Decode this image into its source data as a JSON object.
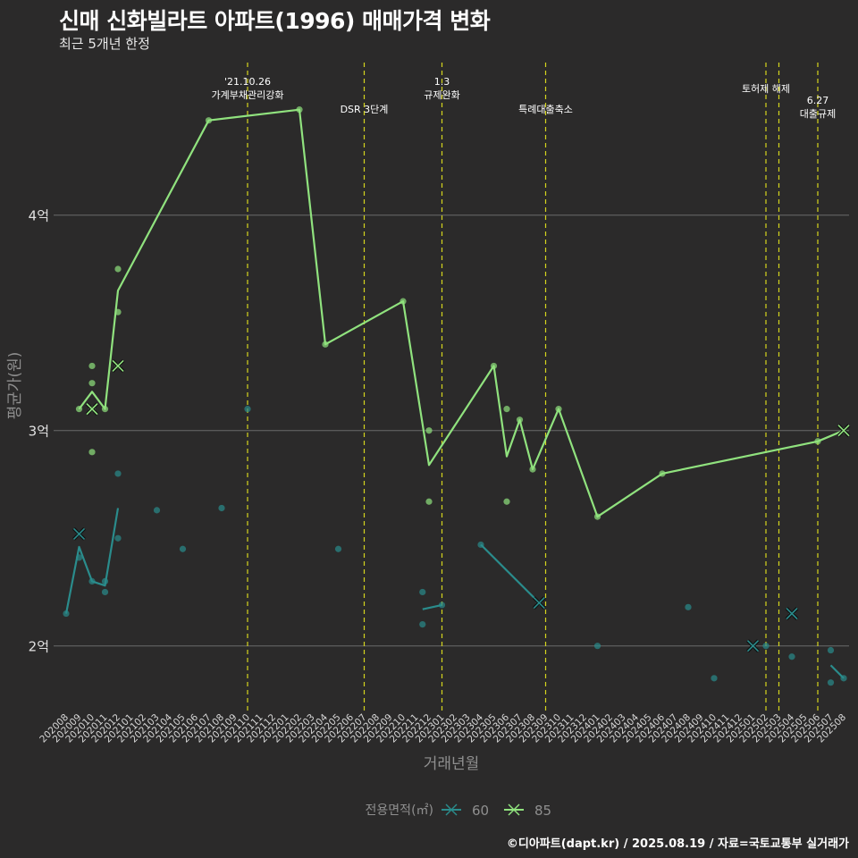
{
  "header": {
    "title": "신매 신화빌라트 아파트(1996) 매매가격 변화",
    "subtitle": "최근 5개년 한정"
  },
  "footer": {
    "caption": "©디아파트(dapt.kr) / 2025.08.19 / 자료=국토교통부 실거래가"
  },
  "colors": {
    "background": "#2b2a2a",
    "grid": "#6b6b6b",
    "series_60": "#2a8c8c",
    "series_85": "#90e27e",
    "event_line": "#d5d51e",
    "text": "#ffffff",
    "axis_title": "#8f8f8f"
  },
  "chart_data": {
    "type": "line",
    "xlabel": "거래년월",
    "ylabel": "평균가(원)",
    "ylim": [
      1.7,
      4.75
    ],
    "x": [
      "202008",
      "202009",
      "202010",
      "202011",
      "202012",
      "202101",
      "202102",
      "202103",
      "202104",
      "202105",
      "202106",
      "202107",
      "202108",
      "202109",
      "202110",
      "202111",
      "202112",
      "202201",
      "202202",
      "202203",
      "202204",
      "202205",
      "202206",
      "202207",
      "202208",
      "202209",
      "202210",
      "202211",
      "202212",
      "202301",
      "202302",
      "202303",
      "202304",
      "202305",
      "202306",
      "202307",
      "202308",
      "202309",
      "202310",
      "202311",
      "202312",
      "202401",
      "202402",
      "202403",
      "202404",
      "202405",
      "202406",
      "202407",
      "202408",
      "202409",
      "202410",
      "202411",
      "202412",
      "202501",
      "202502",
      "202503",
      "202504",
      "202505",
      "202506",
      "202507",
      "202508"
    ],
    "y_ticks": [
      {
        "value": 2,
        "label": "2억"
      },
      {
        "value": 3,
        "label": "3억"
      },
      {
        "value": 4,
        "label": "4억"
      }
    ],
    "legend": {
      "title": "전용면적(㎡)",
      "position": "bottom",
      "entries": [
        "60",
        "85"
      ]
    },
    "events": [
      {
        "x": 14.0,
        "label": "'21.10.26\n가계부채관리강화",
        "row": 1
      },
      {
        "x": 23.0,
        "label": "DSR 3단계",
        "row": 2
      },
      {
        "x": 29.0,
        "label": "1.3\n규제완화",
        "row": 1
      },
      {
        "x": 37.0,
        "label": "특례대출축소",
        "row": 2
      },
      {
        "x": 54.0,
        "label": "토허제 해제",
        "row": 0
      },
      {
        "x": 55.0,
        "label": "",
        "row": 0
      },
      {
        "x": 58.0,
        "label": "6.27\n대출규제",
        "row": 3
      }
    ],
    "series": [
      {
        "name": "60",
        "color": "#2a8c8c",
        "line_segments": [
          [
            [
              0,
              2.15
            ],
            [
              1,
              2.46
            ],
            [
              2,
              2.3
            ],
            [
              3,
              2.28
            ],
            [
              4,
              2.64
            ]
          ],
          [
            [
              27.5,
              2.17
            ],
            [
              29,
              2.19
            ]
          ],
          [
            [
              32,
              2.47
            ],
            [
              36.5,
              2.2
            ]
          ],
          [
            [
              59,
              1.91
            ],
            [
              60,
              1.85
            ]
          ]
        ],
        "points": [
          [
            0,
            2.15
          ],
          [
            1,
            2.41
          ],
          [
            1,
            2.52
          ],
          [
            2,
            2.3
          ],
          [
            3,
            2.3
          ],
          [
            3,
            2.25
          ],
          [
            4,
            2.8
          ],
          [
            4,
            2.5
          ],
          [
            7,
            2.63
          ],
          [
            9,
            2.45
          ],
          [
            12,
            2.64
          ],
          [
            14,
            3.1
          ],
          [
            21,
            2.45
          ],
          [
            27.5,
            2.25
          ],
          [
            27.5,
            2.1
          ],
          [
            29,
            2.19
          ],
          [
            32,
            2.47
          ],
          [
            36.5,
            2.2
          ],
          [
            41,
            2.0
          ],
          [
            48,
            2.18
          ],
          [
            50,
            1.85
          ],
          [
            53,
            2.0
          ],
          [
            54,
            2.0
          ],
          [
            56,
            2.15
          ],
          [
            56,
            1.95
          ],
          [
            59,
            1.98
          ],
          [
            59,
            1.83
          ],
          [
            60,
            1.85
          ]
        ],
        "cancelled": [
          [
            1,
            2.52
          ],
          [
            36.5,
            2.2
          ],
          [
            53,
            2.0
          ],
          [
            56,
            2.15
          ]
        ]
      },
      {
        "name": "85",
        "color": "#90e27e",
        "line_segments": [
          [
            [
              1,
              3.1
            ],
            [
              2,
              3.18
            ],
            [
              3,
              3.1
            ],
            [
              4,
              3.65
            ],
            [
              11,
              4.44
            ],
            [
              18,
              4.49
            ],
            [
              20,
              3.4
            ],
            [
              26,
              3.6
            ],
            [
              28,
              2.84
            ],
            [
              33,
              3.3
            ],
            [
              34,
              2.88
            ],
            [
              35,
              3.05
            ],
            [
              36,
              2.82
            ],
            [
              38,
              3.1
            ],
            [
              41,
              2.6
            ],
            [
              46,
              2.8
            ],
            [
              58,
              2.95
            ],
            [
              60,
              3.0
            ]
          ]
        ],
        "points": [
          [
            1,
            3.1
          ],
          [
            2,
            3.3
          ],
          [
            2,
            3.22
          ],
          [
            2,
            2.9
          ],
          [
            2,
            3.1
          ],
          [
            3,
            3.1
          ],
          [
            4,
            3.75
          ],
          [
            4,
            3.55
          ],
          [
            4,
            3.3
          ],
          [
            11,
            4.44
          ],
          [
            18,
            4.49
          ],
          [
            20,
            3.4
          ],
          [
            26,
            3.6
          ],
          [
            28,
            3.0
          ],
          [
            28,
            2.67
          ],
          [
            33,
            3.3
          ],
          [
            34,
            3.1
          ],
          [
            34,
            2.67
          ],
          [
            35,
            3.05
          ],
          [
            36,
            2.82
          ],
          [
            38,
            3.1
          ],
          [
            41,
            2.6
          ],
          [
            46,
            2.8
          ],
          [
            58,
            2.95
          ],
          [
            60,
            3.0
          ]
        ],
        "cancelled": [
          [
            2,
            3.1
          ],
          [
            4,
            3.3
          ],
          [
            60,
            3.0
          ]
        ]
      }
    ]
  }
}
